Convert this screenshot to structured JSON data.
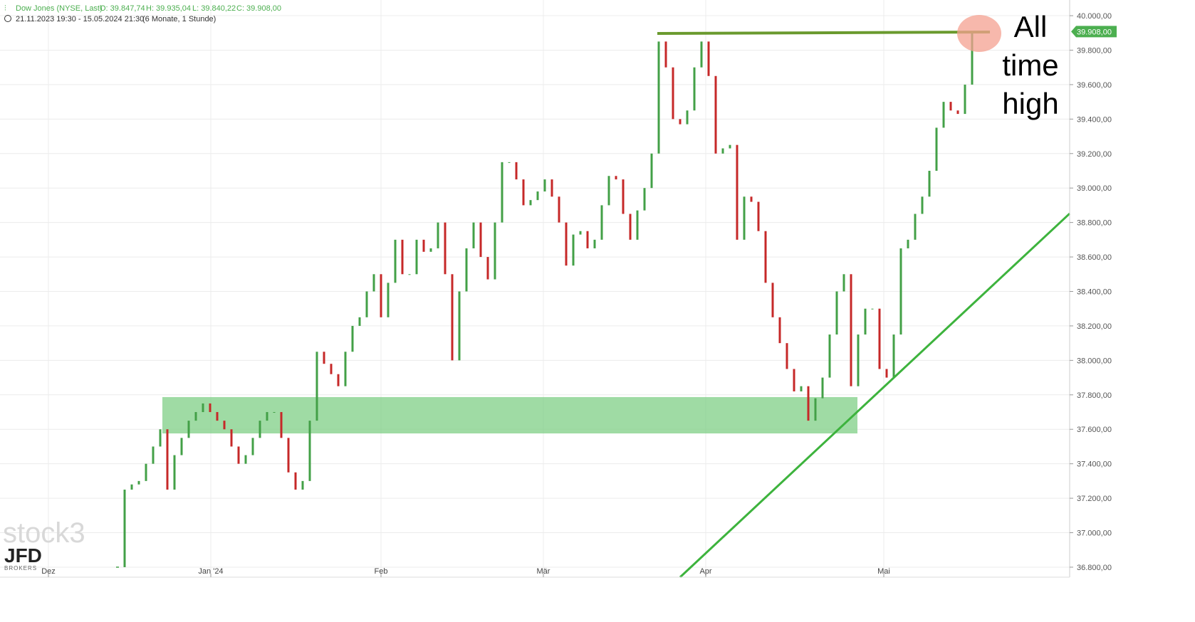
{
  "chart_data": {
    "type": "candlestick",
    "title": "Dow Jones (NYSE, Last)",
    "ohlc": [
      "O: 39.847,74",
      "H: 39.935,04",
      "L: 39.840,22",
      "C: 39.908,00"
    ],
    "subtitle": "21.11.2023 19:30 - 15.05.2024 21:30",
    "period": "(6 Monate, 1 Stunde)",
    "series": [
      {
        "name": "Dow Jones",
        "up_color": "#43a047",
        "down_color": "#c62828",
        "values": [
          36800,
          37250,
          37280,
          37300,
          37400,
          37500,
          37600,
          37250,
          37450,
          37550,
          37650,
          37700,
          37750,
          37700,
          37650,
          37600,
          37500,
          37400,
          37450,
          37550,
          37650,
          37700,
          37700,
          37550,
          37350,
          37250,
          37300,
          37650,
          38050,
          37980,
          37920,
          37850,
          38050,
          38200,
          38250,
          38400,
          38500,
          38250,
          38450,
          38700,
          38500,
          38500,
          38700,
          38630,
          38650,
          38800,
          38500,
          38000,
          38400,
          38650,
          38800,
          38600,
          38470,
          38800,
          39150,
          39150,
          39050,
          38900,
          38930,
          38980,
          39050,
          38950,
          38800,
          38550,
          38730,
          38750,
          38650,
          38700,
          38900,
          39070,
          39050,
          38850,
          38700,
          38870,
          39000,
          39200,
          39850,
          39700,
          39400,
          39370,
          39450,
          39700,
          39850,
          39650,
          39200,
          39230,
          39250,
          38700,
          38950,
          38920,
          38750,
          38450,
          38250,
          38100,
          37950,
          37820,
          37850,
          37650,
          37780,
          37900,
          38150,
          38400,
          38500,
          37850,
          38150,
          38300,
          38300,
          37950,
          37900,
          38150,
          38650,
          38700,
          38850,
          38950,
          39100,
          39350,
          39500,
          39450,
          39430,
          39600,
          39908
        ]
      }
    ],
    "xlim": [
      -16.5,
      133.7
    ],
    "xticks": [
      {
        "value": -9.7,
        "label": "Dez"
      },
      {
        "value": 13.1,
        "label": "Jan '24"
      },
      {
        "value": 37,
        "label": "Feb"
      },
      {
        "value": 59.8,
        "label": "Mär"
      },
      {
        "value": 82.6,
        "label": "Apr"
      },
      {
        "value": 107.6,
        "label": "Mai"
      }
    ],
    "ylim": [
      36742,
      40091
    ],
    "yticks": [
      {
        "value": 36800,
        "label": "36.800,00"
      },
      {
        "value": 37000,
        "label": "37.000,00"
      },
      {
        "value": 37200,
        "label": "37.200,00"
      },
      {
        "value": 37400,
        "label": "37.400,00"
      },
      {
        "value": 37600,
        "label": "37.600,00"
      },
      {
        "value": 37800,
        "label": "37.800,00"
      },
      {
        "value": 38000,
        "label": "38.000,00"
      },
      {
        "value": 38200,
        "label": "38.200,00"
      },
      {
        "value": 38400,
        "label": "38.400,00"
      },
      {
        "value": 38600,
        "label": "38.600,00"
      },
      {
        "value": 38800,
        "label": "38.800,00"
      },
      {
        "value": 39000,
        "label": "39.000,00"
      },
      {
        "value": 39200,
        "label": "39.200,00"
      },
      {
        "value": 39400,
        "label": "39.400,00"
      },
      {
        "value": 39600,
        "label": "39.600,00"
      },
      {
        "value": 39800,
        "label": "39.800,00"
      },
      {
        "value": 40000,
        "label": "40.000,00"
      }
    ],
    "grid": true,
    "last_price": {
      "value": 39908,
      "label": "39.908,00"
    },
    "zone": {
      "x": [
        6.3,
        103.9
      ],
      "y": [
        37576,
        37787
      ],
      "color": "#7fcf86"
    },
    "high_line": {
      "x": [
        75.8,
        122.5
      ],
      "y": [
        39897,
        39905
      ],
      "color": "#6a9a2e"
    },
    "trend_line": {
      "x": [
        79,
        133.7
      ],
      "y": [
        36742,
        38852
      ],
      "color": "#3db33d"
    },
    "annotation": [
      "All",
      "time",
      "high"
    ],
    "watermark": [
      "stock3",
      "JFD",
      "BROKERS"
    ]
  }
}
